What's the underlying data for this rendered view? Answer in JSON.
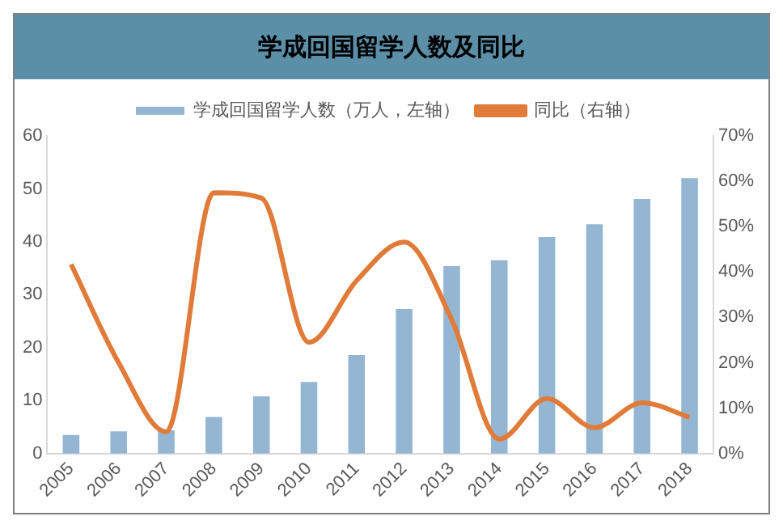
{
  "chart_data": {
    "type": "bar",
    "title": "学成回国留学人数及同比",
    "categories": [
      "2005",
      "2006",
      "2007",
      "2008",
      "2009",
      "2010",
      "2011",
      "2012",
      "2013",
      "2014",
      "2015",
      "2016",
      "2017",
      "2018"
    ],
    "series": [
      {
        "name": "学成回国留学人数（万人，左轴）",
        "color": "#94b6d2",
        "values": [
          3.5,
          4.2,
          4.4,
          6.9,
          10.8,
          13.5,
          18.6,
          27.3,
          35.4,
          36.5,
          40.9,
          43.3,
          48.1,
          52.0
        ]
      },
      {
        "name": "同比（右轴）",
        "type": "line",
        "axis": "y2",
        "color": "#e07b39",
        "values": [
          41.7,
          20.0,
          4.8,
          57.5,
          56.3,
          24.5,
          38.1,
          46.6,
          29.5,
          3.2,
          12.1,
          5.7,
          11.2,
          8.0
        ]
      }
    ],
    "ylim": [
      0,
      60
    ],
    "yticks": [
      0,
      10,
      20,
      30,
      40,
      50,
      60
    ],
    "y2lim": [
      0,
      70
    ],
    "y2ticks": [
      {
        "value": 0,
        "label": "0%"
      },
      {
        "value": 10,
        "label": "10%"
      },
      {
        "value": 20,
        "label": "20%"
      },
      {
        "value": 30,
        "label": "30%"
      },
      {
        "value": 40,
        "label": "40%"
      },
      {
        "value": 50,
        "label": "50%"
      },
      {
        "value": 60,
        "label": "60%"
      },
      {
        "value": 70,
        "label": "70%"
      }
    ],
    "grid": false,
    "legend": "top",
    "marker": "none",
    "line_style": "solid"
  }
}
